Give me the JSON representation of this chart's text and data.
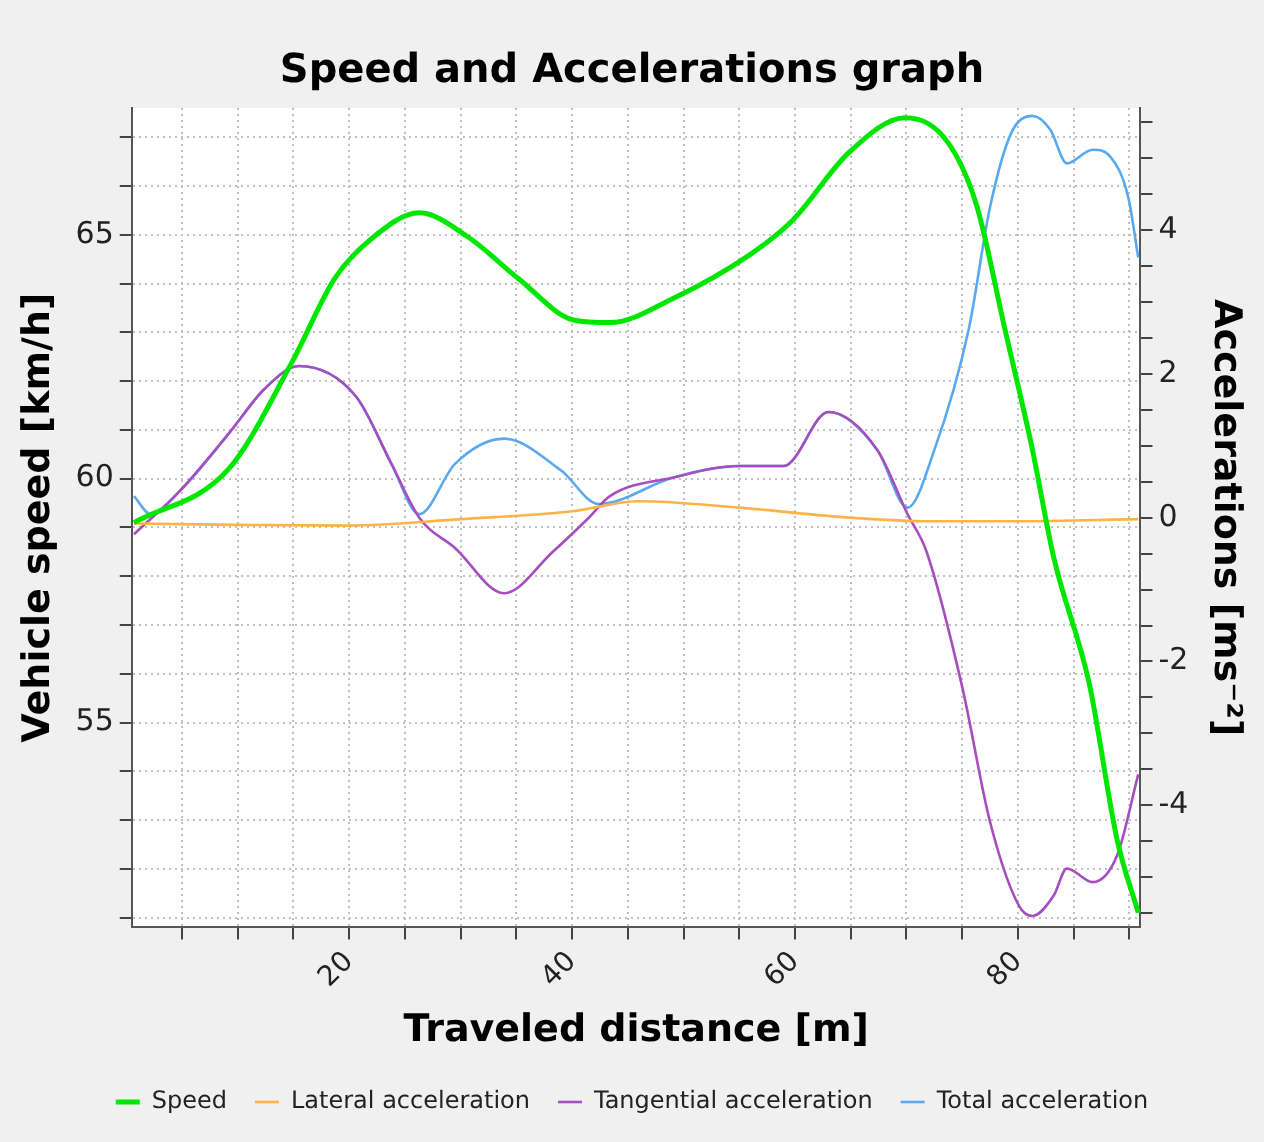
{
  "chart_data": {
    "type": "line",
    "title": "Speed and Accelerations graph",
    "xlabel": "Traveled distance [m]",
    "ylabel": "Vehicle speed [km/h]",
    "y2label": "Accelerations [ms⁻²]",
    "xlim": [
      0.5,
      91
    ],
    "xticks": [
      {
        "value": 5,
        "label": null
      },
      {
        "value": 10,
        "label": null
      },
      {
        "value": 15,
        "label": null
      },
      20,
      {
        "value": 25,
        "label": null
      },
      {
        "value": 30,
        "label": null
      },
      {
        "value": 35,
        "label": null
      },
      40,
      {
        "value": 45,
        "label": null
      },
      {
        "value": 50,
        "label": null
      },
      {
        "value": 55,
        "label": null
      },
      60,
      {
        "value": 65,
        "label": null
      },
      {
        "value": 70,
        "label": null
      },
      {
        "value": 75,
        "label": null
      },
      80,
      {
        "value": 85,
        "label": null
      },
      {
        "value": 90,
        "label": null
      }
    ],
    "ylim": [
      50.8,
      67.6
    ],
    "yticks": [
      {
        "value": 51,
        "label": null
      },
      {
        "value": 52,
        "label": null
      },
      {
        "value": 53,
        "label": null
      },
      {
        "value": 54,
        "label": null
      },
      55,
      {
        "value": 56,
        "label": null
      },
      {
        "value": 57,
        "label": null
      },
      {
        "value": 58,
        "label": null
      },
      {
        "value": 59,
        "label": null
      },
      60,
      {
        "value": 61,
        "label": null
      },
      {
        "value": 62,
        "label": null
      },
      {
        "value": 63,
        "label": null
      },
      {
        "value": 64,
        "label": null
      },
      65,
      {
        "value": 66,
        "label": null
      },
      {
        "value": 67,
        "label": null
      }
    ],
    "y2lim": [
      -5.7,
      5.7
    ],
    "y2ticks": [
      {
        "value": -5.5,
        "label": null
      },
      {
        "value": -5,
        "label": null
      },
      {
        "value": -4.5,
        "label": null
      },
      -4,
      {
        "value": -3.5,
        "label": null
      },
      {
        "value": -3,
        "label": null
      },
      {
        "value": -2.5,
        "label": null
      },
      -2,
      {
        "value": -1.5,
        "label": null
      },
      {
        "value": -1,
        "label": null
      },
      {
        "value": -0.5,
        "label": null
      },
      0,
      {
        "value": 0.5,
        "label": null
      },
      {
        "value": 1,
        "label": null
      },
      {
        "value": 1.5,
        "label": null
      },
      2,
      {
        "value": 2.5,
        "label": null
      },
      {
        "value": 3,
        "label": null
      },
      {
        "value": 3.5,
        "label": null
      },
      4,
      {
        "value": 4.5,
        "label": null
      },
      {
        "value": 5,
        "label": null
      },
      {
        "value": 5.5,
        "label": null
      }
    ],
    "grid": true,
    "legend": "bottom",
    "marker": "none",
    "line_style": "solid",
    "series": [
      {
        "name": "Speed",
        "color": "#00e600",
        "x": [
          0.7,
          9.2,
          14.9,
          18.7,
          21.9,
          26.3,
          30.7,
          35.2,
          40.2,
          43.4,
          49.1,
          56.0,
          59.8,
          64.9,
          69.9,
          73.7,
          76.3,
          78.8,
          81.3,
          83.2,
          86.4,
          88.9,
          90.8
        ],
        "values": [
          59.1,
          60.2,
          62.4,
          64.1,
          64.9,
          65.45,
          64.95,
          64.1,
          63.25,
          63.2,
          63.7,
          64.6,
          65.3,
          66.7,
          67.4,
          66.9,
          65.6,
          63.1,
          60.6,
          58.4,
          55.8,
          52.6,
          51.1
        ]
      },
      {
        "name": "Lateral acceleration",
        "color": "#ffb347",
        "axis": "y2",
        "x": [
          0.7,
          10,
          20,
          30,
          40,
          46,
          55,
          65,
          72,
          80,
          90.8
        ],
        "values": [
          -0.08,
          -0.1,
          -0.11,
          -0.02,
          0.09,
          0.23,
          0.14,
          0,
          -0.05,
          -0.05,
          -0.02
        ]
      },
      {
        "name": "Tangential acceleration",
        "color": "#a64dbf",
        "axis": "y2",
        "x": [
          0.7,
          4.8,
          9.2,
          12.4,
          15.5,
          20.6,
          23.8,
          26.3,
          29.5,
          33.9,
          38.3,
          41.5,
          43.4,
          49.1,
          55,
          59,
          63,
          67.4,
          70.1,
          71.8,
          75,
          77.5,
          80.1,
          81.3,
          83.2,
          84.4,
          86.7,
          88.9,
          90.8
        ],
        "values": [
          -0.23,
          0.37,
          1.17,
          1.79,
          2.11,
          1.69,
          0.75,
          0,
          -0.42,
          -1.05,
          -0.47,
          0,
          0.3,
          0.56,
          0.72,
          0.72,
          1.47,
          0.94,
          0.05,
          -0.47,
          -2.35,
          -4.23,
          -5.4,
          -5.54,
          -5.26,
          -4.88,
          -5.07,
          -4.7,
          -3.57
        ]
      },
      {
        "name": "Total acceleration",
        "color": "#5aa9f0",
        "axis": "y2",
        "x": [
          0.7,
          2.2,
          4.8,
          9.2,
          12.4,
          15.5,
          20.6,
          23.8,
          26.3,
          29.5,
          33.9,
          39,
          42.4,
          49.1,
          55,
          59,
          63,
          67.4,
          70.1,
          72.5,
          75.6,
          77.5,
          79.4,
          81.3,
          82.9,
          84.4,
          86.7,
          88.3,
          89.9,
          90.8
        ],
        "values": [
          0.3,
          0.05,
          0.37,
          1.17,
          1.79,
          2.11,
          1.69,
          0.75,
          0.05,
          0.75,
          1.1,
          0.66,
          0.19,
          0.56,
          0.72,
          0.72,
          1.47,
          0.94,
          0.14,
          0.94,
          2.63,
          4.32,
          5.35,
          5.59,
          5.4,
          4.93,
          5.12,
          5.02,
          4.46,
          3.62
        ]
      }
    ]
  }
}
